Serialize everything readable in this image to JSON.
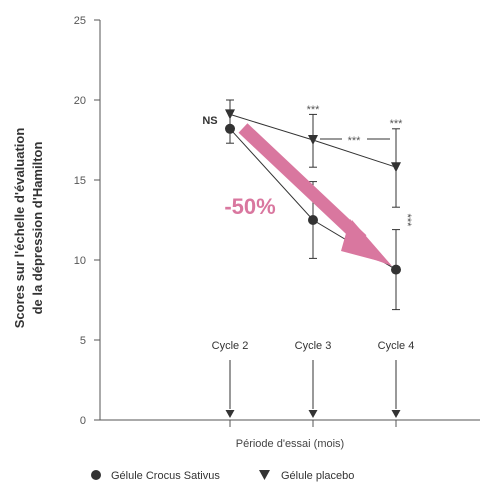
{
  "chart_data": {
    "type": "line",
    "ylabel_line1": "Scores sur l'échelle d'évaluation",
    "ylabel_line2": "de la dépression d'Hamilton",
    "xlabel": "Période d'essai (mois)",
    "ylim": [
      0,
      25
    ],
    "yticks": [
      0,
      5,
      10,
      15,
      20,
      25
    ],
    "x_categories": [
      "Cycle 2",
      "Cycle 3",
      "Cycle 4"
    ],
    "series": [
      {
        "name": "Gélule Crocus Sativus",
        "marker": "circle",
        "values": [
          18.2,
          12.5,
          9.4
        ],
        "error_low": [
          17.3,
          10.1,
          6.9
        ],
        "error_high": [
          19.3,
          14.9,
          11.9
        ]
      },
      {
        "name": "Gélule placebo",
        "marker": "triangle-down",
        "values": [
          19.1,
          17.5,
          15.8
        ],
        "error_low": [
          18.2,
          15.8,
          13.3
        ],
        "error_high": [
          20.0,
          19.1,
          18.2
        ]
      }
    ],
    "annotations": {
      "ns": "NS",
      "reduction": "-50%",
      "sig_cycle3": "***",
      "sig_cycle4": "***",
      "sig_between": "***",
      "sig_vertical": "***"
    },
    "colors": {
      "arrow": "#d9779f",
      "series": "#333333",
      "axis": "#555555"
    }
  }
}
